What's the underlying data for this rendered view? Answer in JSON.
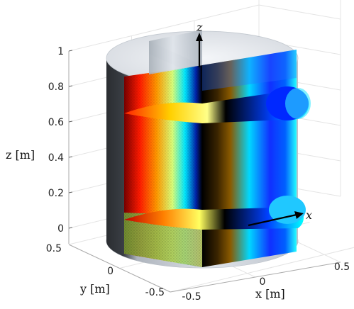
{
  "chart_data": {
    "type": "3d-surface",
    "title": "",
    "axes": {
      "x": {
        "label": "x [m]",
        "ticks": [
          "-0.5",
          "0",
          "0.5"
        ],
        "range": [
          -0.5,
          0.5
        ]
      },
      "y": {
        "label": "y [m]",
        "ticks": [
          "-0.5",
          "0",
          "0.5"
        ],
        "range": [
          -0.5,
          0.5
        ]
      },
      "z": {
        "label": "z [m]",
        "ticks": [
          "0",
          "0.2",
          "0.4",
          "0.6",
          "0.8",
          "1"
        ],
        "range": [
          0,
          1
        ]
      }
    },
    "vector_labels": {
      "z": "z",
      "x": "x"
    },
    "geometry": {
      "cylinder_radius_m": 0.5,
      "cylinder_height_m": 1.0,
      "horizontal_slice_heights_m": [
        0.1,
        0.8
      ],
      "vertical_slices": [
        "x = 0",
        "y = 0"
      ]
    },
    "grid": true,
    "colormap": [
      "#7a0000",
      "#ff0000",
      "#ffaa00",
      "#ffff44",
      "#000000",
      "#0033ff",
      "#00ffff"
    ],
    "colors": {
      "cylinder_wall": "#c9ced6",
      "cylinder_wall_shadow": "#2d3035",
      "mesh_green": "#8fb04a",
      "grid": "#e4e4e4",
      "axis": "#aaaaaa"
    }
  }
}
